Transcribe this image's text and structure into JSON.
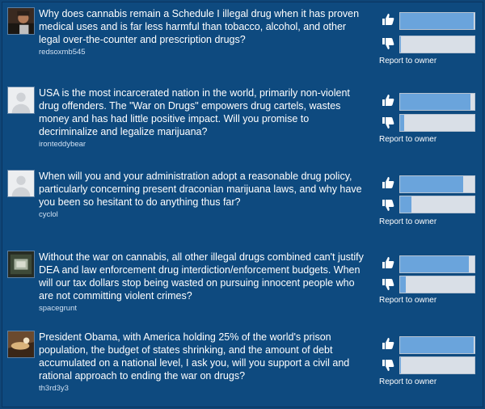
{
  "icons": {
    "up": "thumbs-up-icon",
    "down": "thumbs-down-icon"
  },
  "colors": {
    "background": "#0e4a7f",
    "bar_fill": "#6aa4dc",
    "bar_track": "#d9dfe7"
  },
  "questions": [
    {
      "text": "Why does cannabis remain a Schedule I illegal drug when it has proven medical uses and is far less harmful than tobacco, alcohol, and other legal over-the-counter and prescription drugs?",
      "author": "redsoxmb545",
      "up_fraction": 0.99,
      "down_fraction": 0.01,
      "report_label": "Report to owner"
    },
    {
      "text": "USA is the most incarcerated nation in the world, primarily non-violent drug offenders. The \"War on Drugs\" empowers drug cartels, wastes money and has had little positive impact. Will you promise to decriminalize and legalize marijuana?",
      "author": "ironteddybear",
      "up_fraction": 0.95,
      "down_fraction": 0.05,
      "report_label": "Report to owner"
    },
    {
      "text": "When will you and your administration adopt a reasonable drug policy, particularly concerning present draconian marijuana laws, and why have you been so hesitant to do anything thus far?",
      "author": "cyclol",
      "up_fraction": 0.85,
      "down_fraction": 0.15,
      "report_label": "Report to owner"
    },
    {
      "text": "Without the war on cannabis, all other illegal drugs combined can't justify DEA and law enforcement drug interdiction/enforcement budgets. When will our tax dollars stop being wasted on pursuing innocent people who are not committing violent crimes?",
      "author": "spacegrunt",
      "up_fraction": 0.92,
      "down_fraction": 0.08,
      "report_label": "Report to owner"
    },
    {
      "text": "President Obama, with America holding 25% of the world's prison population, the budget of states shrinking, and the amount of debt accumulated on a national level, I ask you, will you support a civil and rational approach to ending the war on drugs?",
      "author": "th3rd3y3",
      "up_fraction": 0.99,
      "down_fraction": 0.01,
      "report_label": "Report to owner"
    }
  ]
}
